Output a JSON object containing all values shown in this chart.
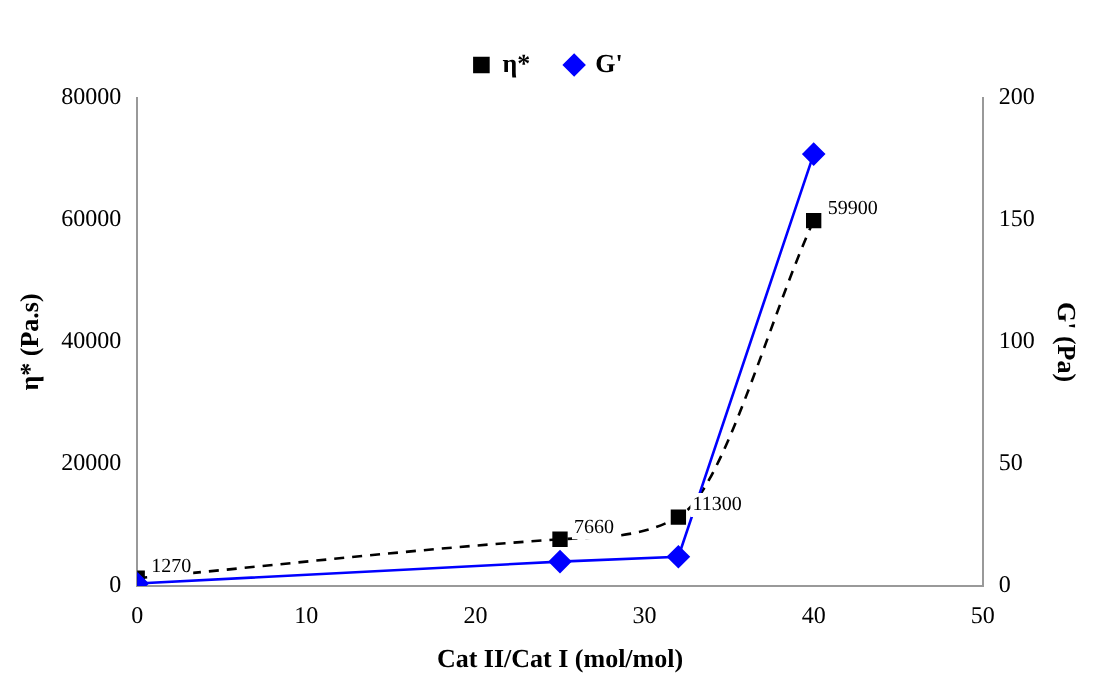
{
  "chart_data": {
    "type": "line",
    "xlabel": "Cat II/Cat I (mol/mol)",
    "ylabel": "η* (Pa.s)",
    "y2label": "G' (Pa)",
    "x": [
      0,
      25,
      32,
      40
    ],
    "series": [
      {
        "name": "η*",
        "color": "#000000",
        "values": [
          1270,
          7660,
          11300,
          59900
        ],
        "marker": "square",
        "line_style": "dashed",
        "value_labels": [
          "1270",
          "7660",
          "11300",
          "59900"
        ]
      },
      {
        "name": "G'",
        "color": "#0000ff",
        "values": [
          1,
          10,
          12,
          177
        ],
        "marker": "diamond",
        "line_style": "solid",
        "axis": "y2"
      }
    ],
    "xlim": [
      0,
      50
    ],
    "xticks": [
      0,
      10,
      20,
      30,
      40,
      50
    ],
    "ylim": [
      0,
      80000
    ],
    "yticks": [
      0,
      20000,
      40000,
      60000,
      80000
    ],
    "y2lim": [
      0,
      200
    ],
    "y2ticks": [
      0,
      50,
      100,
      150,
      200
    ],
    "grid": false,
    "legend": "top"
  }
}
